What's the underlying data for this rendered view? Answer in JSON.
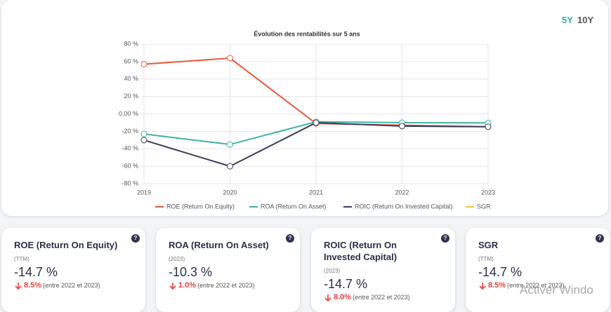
{
  "toggles": [
    "5Y",
    "10Y"
  ],
  "chart_data": {
    "type": "line",
    "title": "Évolution des rentabilités sur 5 ans",
    "categories": [
      "2019",
      "2020",
      "2021",
      "2022",
      "2023"
    ],
    "ylim": [
      -80,
      80
    ],
    "yticks": [
      {
        "value": 80,
        "label": "80 %"
      },
      {
        "value": 60,
        "label": "60 %"
      },
      {
        "value": 40,
        "label": "40 %"
      },
      {
        "value": 20,
        "label": "20 %"
      },
      {
        "value": 0,
        "label": "0.00 %"
      },
      {
        "value": -20,
        "label": "-20 %"
      },
      {
        "value": -40,
        "label": "-40 %"
      },
      {
        "value": -60,
        "label": "-60 %"
      },
      {
        "value": -80,
        "label": "-80 %"
      }
    ],
    "grid": true,
    "series": [
      {
        "name": "ROE (Return On Equity)",
        "color": "#e8583c",
        "values": [
          57,
          64,
          -11,
          -13,
          -14.7
        ]
      },
      {
        "name": "ROA (Return On Asset)",
        "color": "#3ab5a0",
        "values": [
          -23,
          -35,
          -9,
          -10,
          -10.3
        ]
      },
      {
        "name": "ROIC (Return On Invested Capital)",
        "color": "#3b3f5c",
        "values": [
          -30,
          -60,
          -10,
          -14,
          -14.7
        ]
      },
      {
        "name": "SGR",
        "color": "#f5c242",
        "values": [
          null,
          null,
          null,
          null,
          null
        ]
      }
    ]
  },
  "cards": [
    {
      "title": "ROE (Return On Equity)",
      "period": "(TTM)",
      "value": "-14.7 %",
      "change": "8.5%",
      "note": "(entre 2022 et 2023)"
    },
    {
      "title": "ROA (Return On Asset)",
      "period": "(2023)",
      "value": "-10.3 %",
      "change": "1.0%",
      "note": "(entre 2022 et 2023)"
    },
    {
      "title": "ROIC (Return On Invested Capital)",
      "period": "(2023)",
      "value": "-14.7 %",
      "change": "8.0%",
      "note": "(entre 2022 et 2023)"
    },
    {
      "title": "SGR",
      "period": "(TTM)",
      "value": "-14.7 %",
      "change": "8.5%",
      "note": "(entre 2022 et 2023)"
    }
  ],
  "watermark": "Activer Windo"
}
